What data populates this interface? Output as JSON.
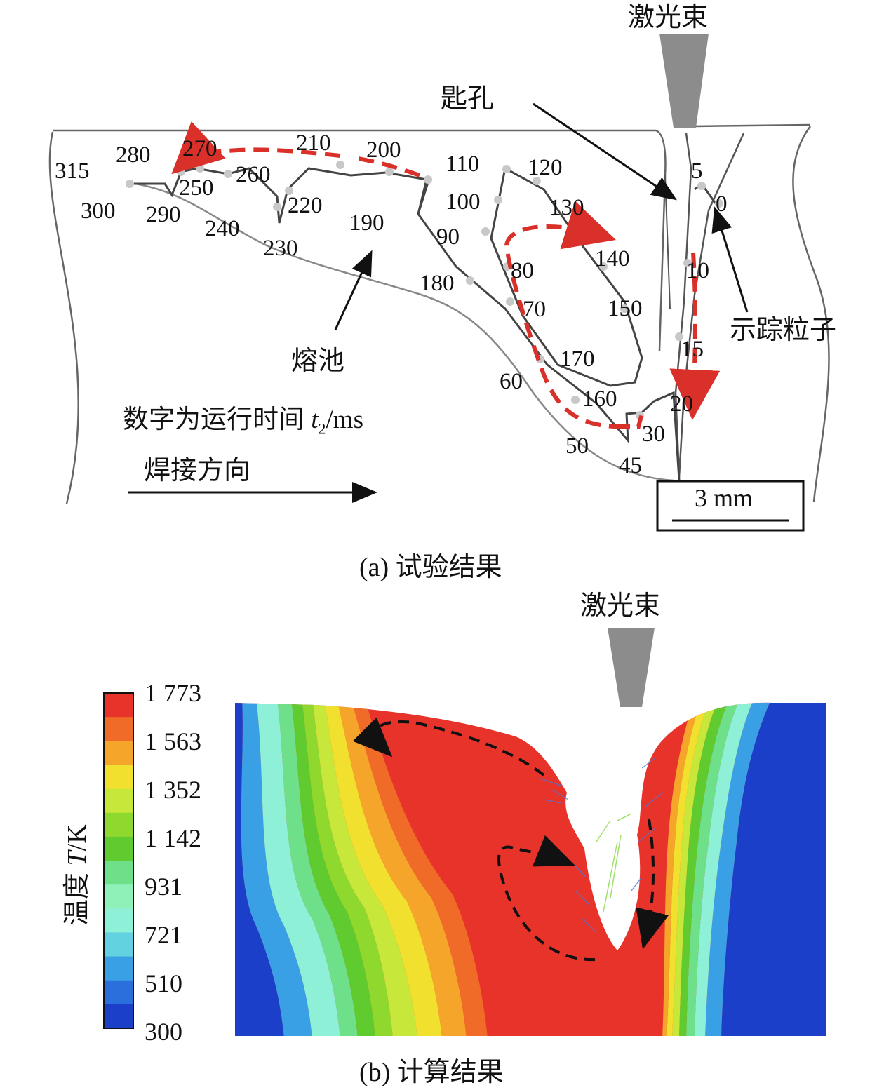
{
  "panel_a": {
    "beam_label": "激光束",
    "keyhole_label": "匙孔",
    "pool_label": "熔池",
    "tracer_label": "示踪粒子",
    "note_prefix": "数字为运行时间 ",
    "note_var": "t",
    "note_sub": "2",
    "note_unit": "/ms",
    "direction_label": "焊接方向",
    "scale_label": "3 mm",
    "caption": "(a) 试验结果",
    "time_labels": [
      "315",
      "280",
      "270",
      "210",
      "200",
      "110",
      "120",
      "5",
      "0",
      "300",
      "290",
      "250",
      "260",
      "220",
      "100",
      "130",
      "240",
      "230",
      "190",
      "90",
      "140",
      "10",
      "80",
      "180",
      "70",
      "150",
      "15",
      "170",
      "60",
      "160",
      "20",
      "50",
      "30",
      "45"
    ]
  },
  "panel_b": {
    "beam_label": "激光束",
    "legend_title_prefix": "温度 ",
    "legend_title_var": "T",
    "legend_title_unit": "/K",
    "legend_values": [
      "1 773",
      "1 563",
      "1 352",
      "1 142",
      "931",
      "721",
      "510",
      "300"
    ],
    "legend_colors": [
      "#e8332a",
      "#f06a28",
      "#f5a52a",
      "#f2e02e",
      "#c7e83a",
      "#8fd92e",
      "#5fcb2e",
      "#6fe08a",
      "#8ff0b8",
      "#8ff0d8",
      "#63d2e0",
      "#3aa0e6",
      "#2a6fdc",
      "#1b3fc8"
    ],
    "caption": "(b) 计算结果"
  }
}
